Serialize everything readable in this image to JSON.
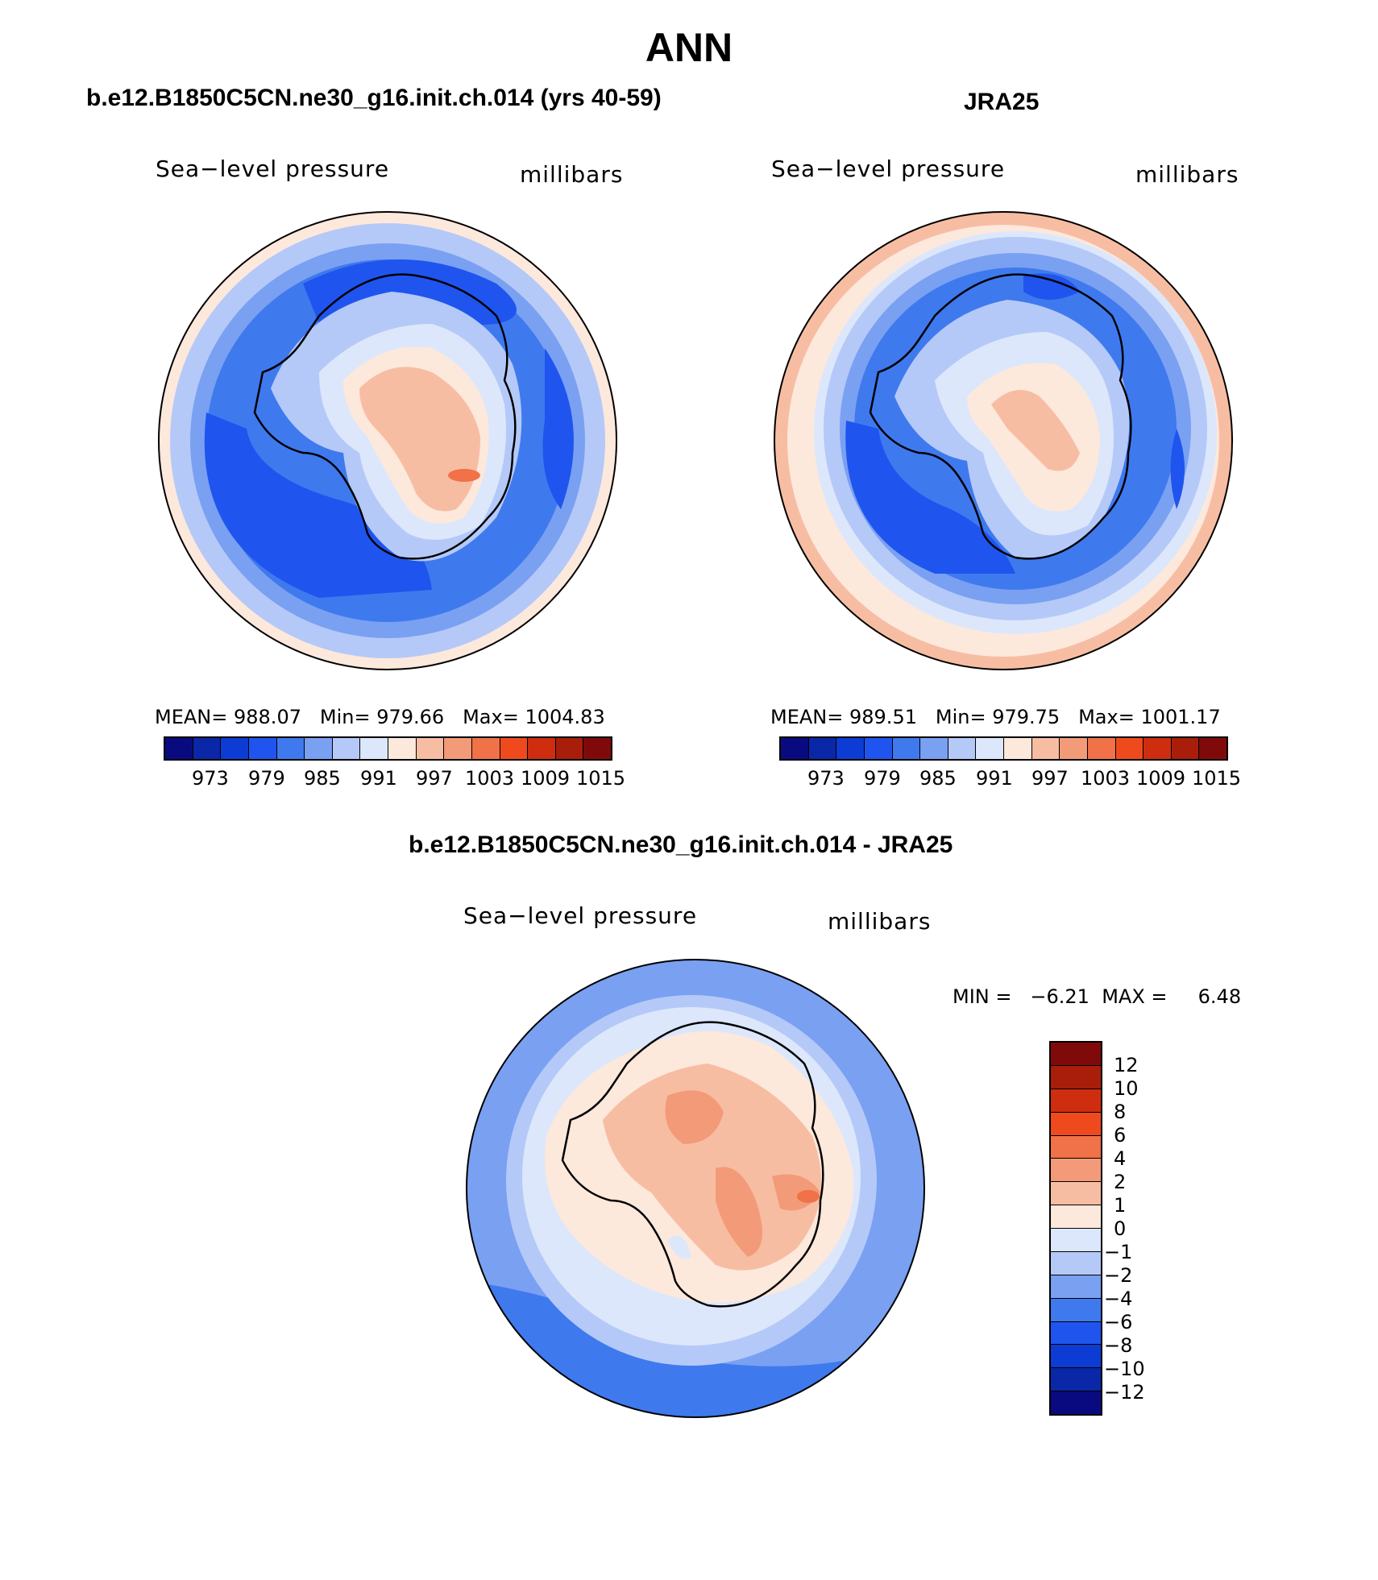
{
  "title": "ANN",
  "panels": [
    {
      "case": "b.e12.B1850C5CN.ne30_g16.init.ch.014 (yrs 40-59)",
      "variable": "Sea−level pressure",
      "units": "millibars",
      "mean_label": "MEAN=",
      "mean": "988.07",
      "min_label": "Min=",
      "min": "979.66",
      "max_label": "Max=",
      "max": "1004.83"
    },
    {
      "case": "JRA25",
      "variable": "Sea−level pressure",
      "units": "millibars",
      "mean_label": "MEAN=",
      "mean": "989.51",
      "min_label": "Min=",
      "min": "979.75",
      "max_label": "Max=",
      "max": "1001.17"
    }
  ],
  "diff_panel": {
    "case": "b.e12.B1850C5CN.ne30_g16.init.ch.014 - JRA25",
    "variable": "Sea−level pressure",
    "units": "millibars",
    "min_label": "MIN =",
    "min": "−6.21",
    "max_label": "MAX =",
    "max": "6.48"
  },
  "colorbar_abs": {
    "ticks": [
      "973",
      "979",
      "985",
      "991",
      "997",
      "1003",
      "1009",
      "1015"
    ],
    "colors": [
      "#0a0a80",
      "#0a27a8",
      "#0c3cd4",
      "#1f55ee",
      "#3f79ee",
      "#7aa0f2",
      "#b4c9f8",
      "#dce7fb",
      "#fde8dc",
      "#f7bda3",
      "#f39a78",
      "#f17148",
      "#ef4a1e",
      "#cf2d10",
      "#a81e0a",
      "#800a0a"
    ]
  },
  "colorbar_diff": {
    "ticks": [
      "12",
      "10",
      "8",
      "6",
      "4",
      "2",
      "1",
      "0",
      "−1",
      "−2",
      "−4",
      "−6",
      "−8",
      "−10",
      "−12"
    ],
    "colors": [
      "#800a0a",
      "#a81e0a",
      "#cf2d10",
      "#ef4a1e",
      "#f17148",
      "#f39a78",
      "#f7bda3",
      "#fde8dc",
      "#dce7fb",
      "#b4c9f8",
      "#7aa0f2",
      "#3f79ee",
      "#1f55ee",
      "#0c3cd4",
      "#0a27a8",
      "#0a0a80"
    ]
  }
}
